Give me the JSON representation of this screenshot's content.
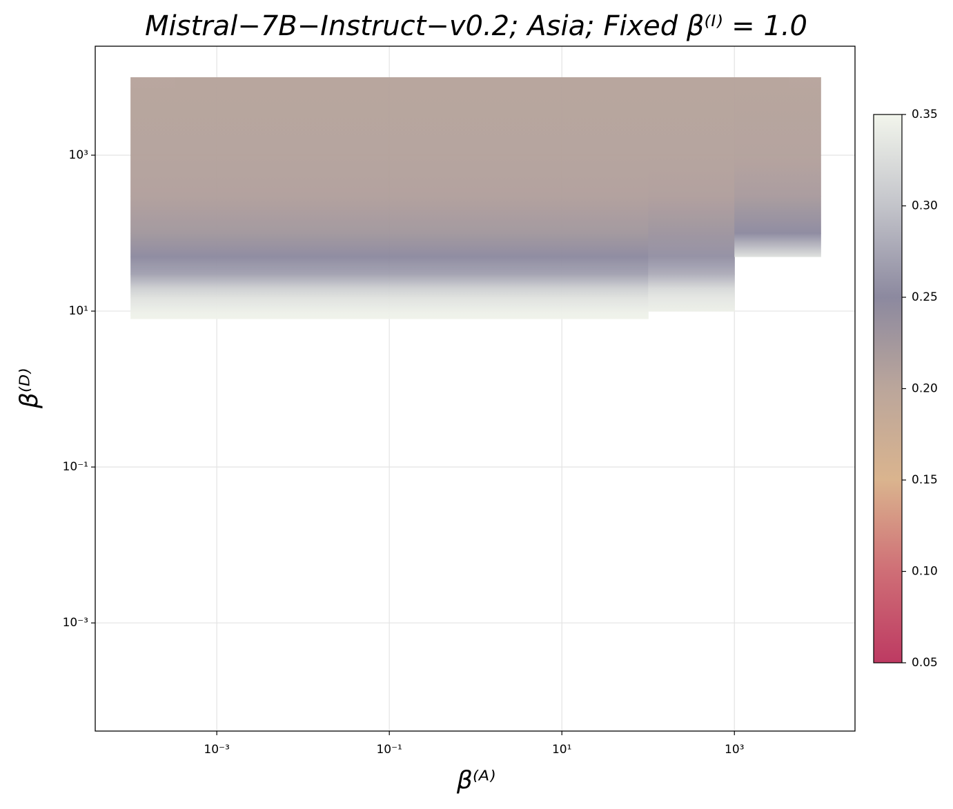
{
  "chart_data": {
    "type": "heatmap",
    "title": "Mistral−7B−Instruct−v0.2;  Asia;  Fixed β⁽ᴵ⁾ = 1.0",
    "xlabel": "β⁽ᴬ⁾",
    "ylabel": "β⁽ᴰ⁾",
    "log_x": true,
    "log_y": true,
    "grid": true,
    "xlim": [
      3.9e-05,
      25000.0
    ],
    "ylim": [
      4.1e-05,
      25000.0
    ],
    "xticks": [
      {
        "value": 0.001,
        "label": "10⁻³"
      },
      {
        "value": 0.1,
        "label": "10⁻¹"
      },
      {
        "value": 10,
        "label": "10¹"
      },
      {
        "value": 1000,
        "label": "10³"
      }
    ],
    "yticks": [
      {
        "value": 0.001,
        "label": "10⁻³"
      },
      {
        "value": 0.1,
        "label": "10⁻¹"
      },
      {
        "value": 10,
        "label": "10¹"
      },
      {
        "value": 1000,
        "label": "10³"
      }
    ],
    "x_edges": [
      0.0001,
      0.001,
      0.01,
      0.1,
      1,
      10,
      100,
      1000,
      10000
    ],
    "y": [
      8,
      10,
      15,
      20,
      30,
      50,
      100,
      300,
      1000,
      10000
    ],
    "z": [
      [
        0.348,
        0.348,
        0.348,
        0.348,
        0.348,
        0.348,
        null,
        null
      ],
      [
        0.345,
        0.345,
        0.345,
        0.345,
        0.345,
        0.345,
        0.345,
        null
      ],
      [
        0.33,
        0.33,
        0.33,
        0.33,
        0.33,
        0.33,
        0.335,
        null
      ],
      [
        0.31,
        0.31,
        0.31,
        0.31,
        0.31,
        0.31,
        0.32,
        null
      ],
      [
        0.27,
        0.27,
        0.27,
        0.27,
        0.27,
        0.27,
        0.28,
        null
      ],
      [
        0.25,
        0.25,
        0.25,
        0.25,
        0.25,
        0.25,
        0.255,
        0.33
      ],
      [
        0.228,
        0.228,
        0.228,
        0.228,
        0.228,
        0.228,
        0.232,
        0.25
      ],
      [
        0.212,
        0.212,
        0.212,
        0.212,
        0.212,
        0.212,
        0.213,
        0.22
      ],
      [
        0.207,
        0.207,
        0.207,
        0.207,
        0.207,
        0.207,
        0.207,
        0.208
      ],
      [
        0.205,
        0.205,
        0.205,
        0.205,
        0.205,
        0.205,
        0.205,
        0.205
      ]
    ],
    "colorbar_lim": [
      0.05,
      0.35
    ],
    "colorbar_ticks": [
      0.05,
      {
        "value": 0.1,
        "label": "0.10"
      },
      0.15,
      {
        "value": 0.2,
        "label": "0.20"
      },
      0.25,
      {
        "value": 0.3,
        "label": "0.30"
      },
      0.35
    ],
    "colormap": [
      {
        "value": 0.05,
        "color": "#bd3a62"
      },
      {
        "value": 0.1,
        "color": "#cf6e76"
      },
      {
        "value": 0.15,
        "color": "#dab48e"
      },
      {
        "value": 0.2,
        "color": "#bba69b"
      },
      {
        "value": 0.25,
        "color": "#8c899f"
      },
      {
        "value": 0.3,
        "color": "#c3c4ca"
      },
      {
        "value": 0.35,
        "color": "#f2f5ec"
      }
    ]
  }
}
